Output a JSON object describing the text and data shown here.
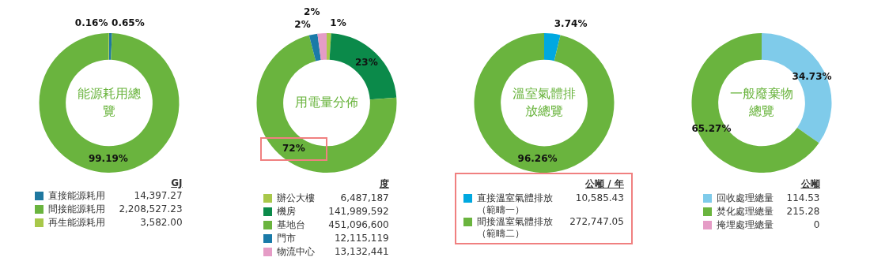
{
  "chart_data": [
    {
      "type": "donut",
      "title": "能源耗用總覽",
      "legend_title": "GJ",
      "legend": "bottom",
      "categories": [
        "直接能源耗用",
        "間接能源耗用",
        "再生能源耗用"
      ],
      "values": [
        14397.27,
        2208527.23,
        3582.0
      ],
      "colors": [
        "#1f78a0",
        "#6ab43e",
        "#a8c84a"
      ],
      "value_labels": [
        "14,397.27",
        "2,208,527.23",
        "3,582.00"
      ],
      "annotations": [
        "0.65%",
        "99.19%",
        "0.16%"
      ]
    },
    {
      "type": "donut",
      "title": "用電量分佈",
      "legend_title": "度",
      "legend": "bottom",
      "categories": [
        "辦公大樓",
        "機房",
        "基地台",
        "門市",
        "物流中心"
      ],
      "values": [
        6487187,
        141989592,
        451096600,
        12115119,
        13132441
      ],
      "colors": [
        "#a8c84a",
        "#0b8a4a",
        "#6ab43e",
        "#1a7aa8",
        "#e59cc6"
      ],
      "value_labels": [
        "6,487,187",
        "141,989,592",
        "451,096,600",
        "12,115,119",
        "13,132,441"
      ],
      "annotations": [
        "1%",
        "23%",
        "72%",
        "2%",
        "2%"
      ]
    },
    {
      "type": "donut",
      "title": "溫室氣體排放總覽",
      "legend_title": "公噸 / 年",
      "legend": "bottom",
      "categories": [
        "直接溫室氣體排放（範疇一）",
        "間接溫室氣體排放（範疇二）"
      ],
      "values": [
        10585.43,
        272747.05
      ],
      "colors": [
        "#00a8e0",
        "#6ab43e"
      ],
      "value_labels": [
        "10,585.43",
        "272,747.05"
      ],
      "annotations": [
        "3.74%",
        "96.26%"
      ]
    },
    {
      "type": "donut",
      "title": "一般廢棄物總覽",
      "legend_title": "公噸",
      "legend": "bottom",
      "categories": [
        "回收處理總量",
        "焚化處理總量",
        "掩埋處理總量"
      ],
      "values": [
        114.53,
        215.28,
        0
      ],
      "colors": [
        "#7fcbea",
        "#6ab43e",
        "#e59cc6"
      ],
      "value_labels": [
        "114.53",
        "215.28",
        "0"
      ],
      "annotations": [
        "34.73%",
        "65.27%"
      ]
    }
  ]
}
